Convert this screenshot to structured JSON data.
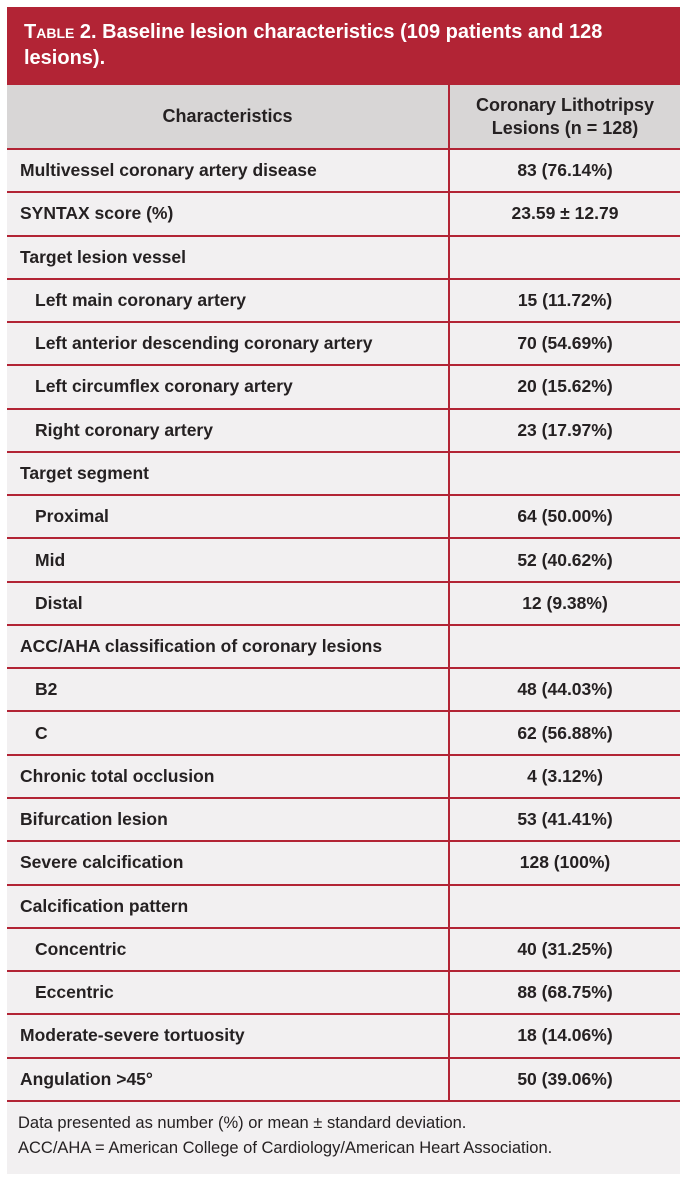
{
  "page": {
    "colors": {
      "accent_red": "#b22435",
      "header_bg": "#d8d6d6",
      "row_bg": "#f2f0f1",
      "text": "#252122",
      "title_text": "#ffffff"
    },
    "title": {
      "label": "Table 2.",
      "text": "Baseline lesion characteristics (109 patients and 128 lesions)."
    },
    "columns": {
      "characteristics": "Characteristics",
      "value": "Coronary Lithotripsy Lesions (n = 128)"
    },
    "rows": [
      {
        "label": "Multivessel coronary artery disease",
        "value": "83 (76.14%)",
        "indent": false
      },
      {
        "label": "SYNTAX score (%)",
        "value": "23.59 ± 12.79",
        "indent": false
      },
      {
        "label": "Target lesion vessel",
        "value": "",
        "indent": false
      },
      {
        "label": "Left main coronary artery",
        "value": "15 (11.72%)",
        "indent": true
      },
      {
        "label": "Left anterior descending coronary artery",
        "value": "70 (54.69%)",
        "indent": true
      },
      {
        "label": "Left circumflex coronary artery",
        "value": "20 (15.62%)",
        "indent": true
      },
      {
        "label": "Right coronary artery",
        "value": "23 (17.97%)",
        "indent": true
      },
      {
        "label": "Target segment",
        "value": "",
        "indent": false
      },
      {
        "label": "Proximal",
        "value": "64 (50.00%)",
        "indent": true
      },
      {
        "label": "Mid",
        "value": "52 (40.62%)",
        "indent": true
      },
      {
        "label": "Distal",
        "value": "12 (9.38%)",
        "indent": true
      },
      {
        "label": "ACC/AHA classification of coronary lesions",
        "value": "",
        "indent": false
      },
      {
        "label": "B2",
        "value": "48 (44.03%)",
        "indent": true
      },
      {
        "label": "C",
        "value": "62 (56.88%)",
        "indent": true
      },
      {
        "label": "Chronic total occlusion",
        "value": "4 (3.12%)",
        "indent": false
      },
      {
        "label": "Bifurcation lesion",
        "value": "53 (41.41%)",
        "indent": false
      },
      {
        "label": "Severe calcification",
        "value": "128 (100%)",
        "indent": false
      },
      {
        "label": "Calcification pattern",
        "value": "",
        "indent": false
      },
      {
        "label": "Concentric",
        "value": "40 (31.25%)",
        "indent": true
      },
      {
        "label": "Eccentric",
        "value": "88 (68.75%)",
        "indent": true
      },
      {
        "label": "Moderate-severe tortuosity",
        "value": "18 (14.06%)",
        "indent": false
      },
      {
        "label": "Angulation >45°",
        "value": "50 (39.06%)",
        "indent": false
      }
    ],
    "footnotes": {
      "line1": "Data presented as number (%) or mean ± standard deviation.",
      "line2": "ACC/AHA = American College of Cardiology/American Heart Association."
    }
  }
}
